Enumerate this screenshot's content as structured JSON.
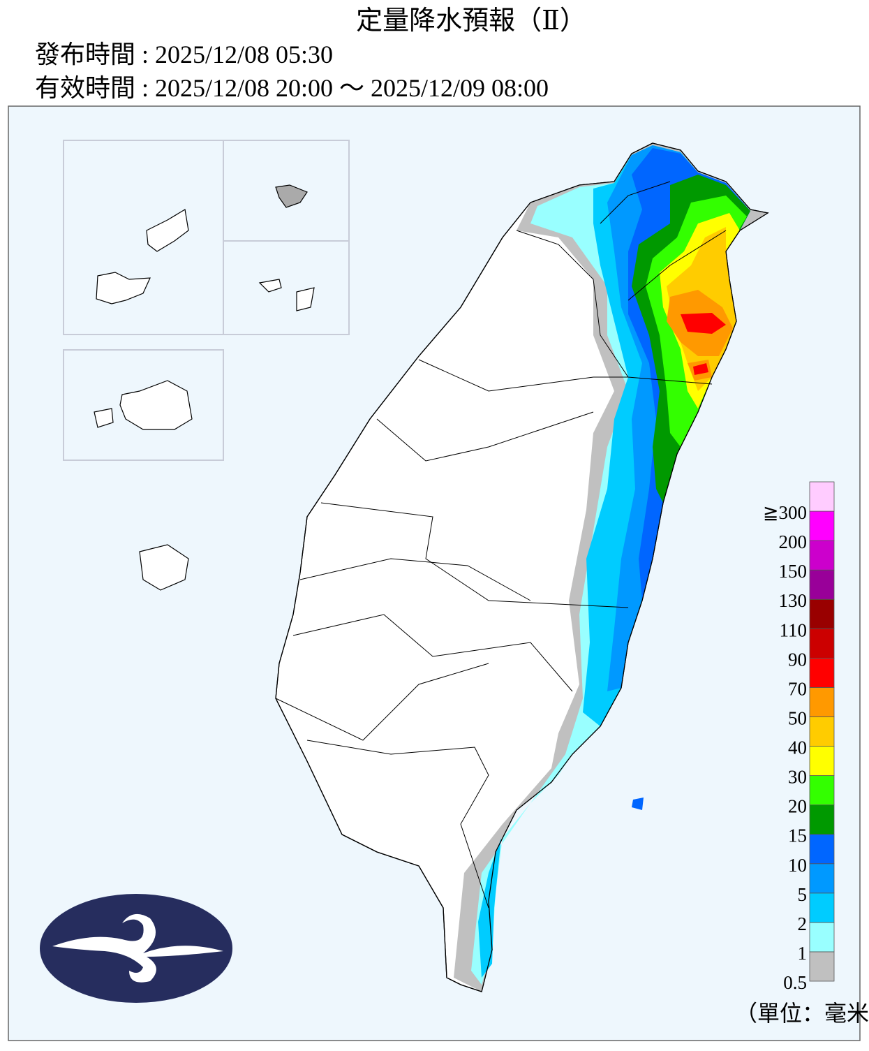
{
  "header": {
    "title": "定量降水預報（Ⅱ）",
    "issued": "發布時間 : 2025/12/08 05:30",
    "valid": "有效時間 : 2025/12/08 20:00 ～ 2025/12/09 08:00"
  },
  "legend": {
    "labels": [
      "0.5",
      "1",
      "2",
      "5",
      "10",
      "15",
      "20",
      "30",
      "40",
      "50",
      "70",
      "90",
      "110",
      "130",
      "150",
      "200",
      "≧300"
    ],
    "colors": [
      "#c0c0c0",
      "#99ffff",
      "#00ccff",
      "#0099ff",
      "#0066ff",
      "#009900",
      "#33ff00",
      "#ffff00",
      "#ffcc00",
      "#ff9900",
      "#ff0000",
      "#cc0000",
      "#990000",
      "#990099",
      "#cc00cc",
      "#ff00ff",
      "#ffccff"
    ],
    "unit": "（單位：毫米）"
  }
}
